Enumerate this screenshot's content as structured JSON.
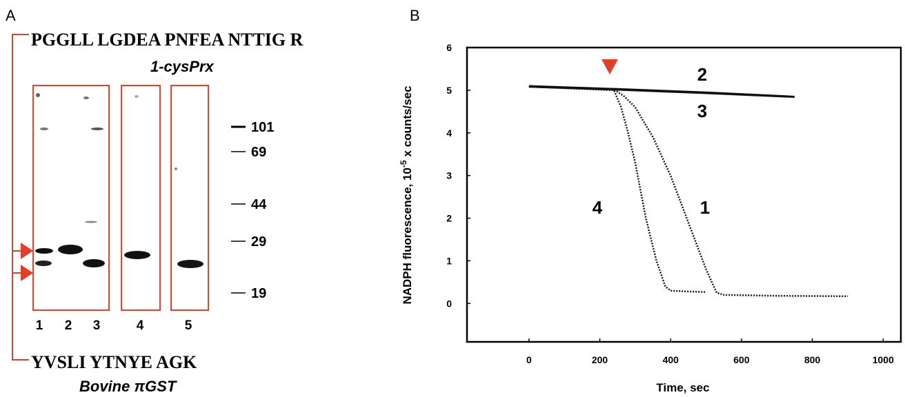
{
  "panel_a": {
    "label": "A",
    "top_sequence": "PGGLL LGDEA PNFEA NTTIG R",
    "top_protein": "1-cysPrx",
    "bottom_sequence": "YVSLI YTNYE AGK",
    "bottom_protein": "Bovine πGST",
    "lanes": [
      "1",
      "2",
      "3",
      "4",
      "5"
    ],
    "markers": [
      "101",
      "69",
      "44",
      "29",
      "19"
    ]
  },
  "chart_data": {
    "type": "line",
    "panel_label": "B",
    "xlabel": "Time, sec",
    "ylabel": "NADPH fluorescence, 10",
    "ylabel_sup": "-5",
    "ylabel_end": "x counts/sec",
    "xlim": [
      -175,
      1050
    ],
    "ylim": [
      -0.9,
      6
    ],
    "xticks": [
      0,
      200,
      400,
      600,
      800,
      1000
    ],
    "yticks": [
      0,
      1,
      2,
      3,
      4,
      5,
      6
    ],
    "series": [
      {
        "name": "1",
        "color": "#111111",
        "x": [
          0,
          240,
          270,
          300,
          350,
          400,
          450,
          500,
          530,
          550,
          700,
          900
        ],
        "values": [
          5.08,
          5.02,
          4.85,
          4.6,
          3.9,
          3.0,
          1.9,
          0.8,
          0.25,
          0.2,
          0.18,
          0.17
        ]
      },
      {
        "name": "2",
        "color": "#111111",
        "x": [
          0,
          250,
          500,
          750
        ],
        "values": [
          5.1,
          5.03,
          4.95,
          4.85
        ]
      },
      {
        "name": "3",
        "color": "#111111",
        "x": [
          0,
          250,
          500,
          750
        ],
        "values": [
          5.08,
          5.01,
          4.93,
          4.84
        ]
      },
      {
        "name": "4",
        "color": "#111111",
        "x": [
          0,
          240,
          260,
          280,
          300,
          330,
          360,
          385,
          400,
          450,
          500
        ],
        "values": [
          5.08,
          5.0,
          4.6,
          4.0,
          3.3,
          2.0,
          1.0,
          0.4,
          0.3,
          0.28,
          0.27
        ]
      }
    ]
  }
}
